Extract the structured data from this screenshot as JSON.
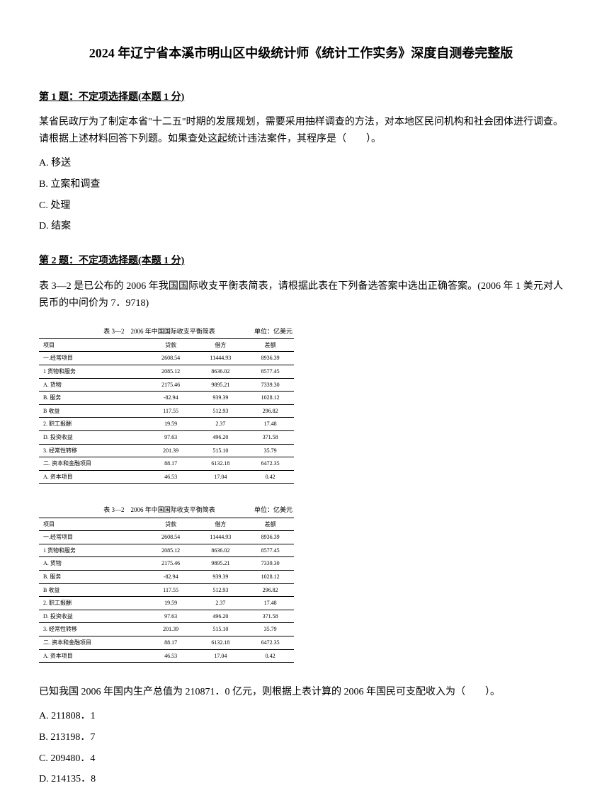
{
  "title": "2024 年辽宁省本溪市明山区中级统计师《统计工作实务》深度自测卷完整版",
  "q1": {
    "header": "第 1 题：不定项选择题(本题 1 分)",
    "body": "某省民政厅为了制定本省\"十二五\"时期的发展规划，需要采用抽样调查的方法，对本地区民问机构和社会团体进行调查。 请根据上述材料回答下列题。如果查处这起统计违法案件，其程序是（　　）。",
    "optA": "A. 移送",
    "optB": "B. 立案和调查",
    "optC": "C. 处理",
    "optD": "D. 结案"
  },
  "q2": {
    "header": "第 2 题：不定项选择题(本题 1 分)",
    "body": "表 3—2 是已公布的 2006 年我国国际收支平衡表简表，请根据此表在下列备选答案中选出正确答案。(2006 年 1 美元对人民币的中问价为 7．9718)",
    "post": "已知我国 2006 年国内生产总值为 210871．0 亿元，则根据上表计算的 2006 年国民可支配收入为（　　）。",
    "optA": "A. 211808．1",
    "optB": "B. 213198．7",
    "optC": "C. 209480．4",
    "optD": "D. 214135．8"
  },
  "table": {
    "caption": "表 3—2　2006 年中国国际收支平衡简表",
    "unit": "单位：亿美元",
    "headers": [
      "项目",
      "贷款",
      "借方",
      "差额"
    ],
    "rows": [
      [
        "一.经常项目",
        "2608.54",
        "11444.93",
        "8936.39"
      ],
      [
        "1 货物和服务",
        "2085.12",
        "8636.02",
        "8577.45"
      ],
      [
        "A. 货物",
        "2175.46",
        "9895.21",
        "7339.30"
      ],
      [
        "B. 服务",
        "-82.94",
        "939.39",
        "1028.12"
      ],
      [
        "B 收益",
        "117.55",
        "512.93",
        "296.82"
      ],
      [
        "2. 职工报酬",
        "19.59",
        "2.37",
        "17.48"
      ],
      [
        "D. 投资收益",
        "97.63",
        "496.20",
        "371.58"
      ],
      [
        "3. 经常性转移",
        "201.39",
        "515.10",
        "35.79"
      ],
      [
        "二. 资本和金融项目",
        "88.17",
        "6132.18",
        "6472.35"
      ],
      [
        "A. 资本项目",
        "46.53",
        "17.04",
        "0.42"
      ]
    ]
  }
}
